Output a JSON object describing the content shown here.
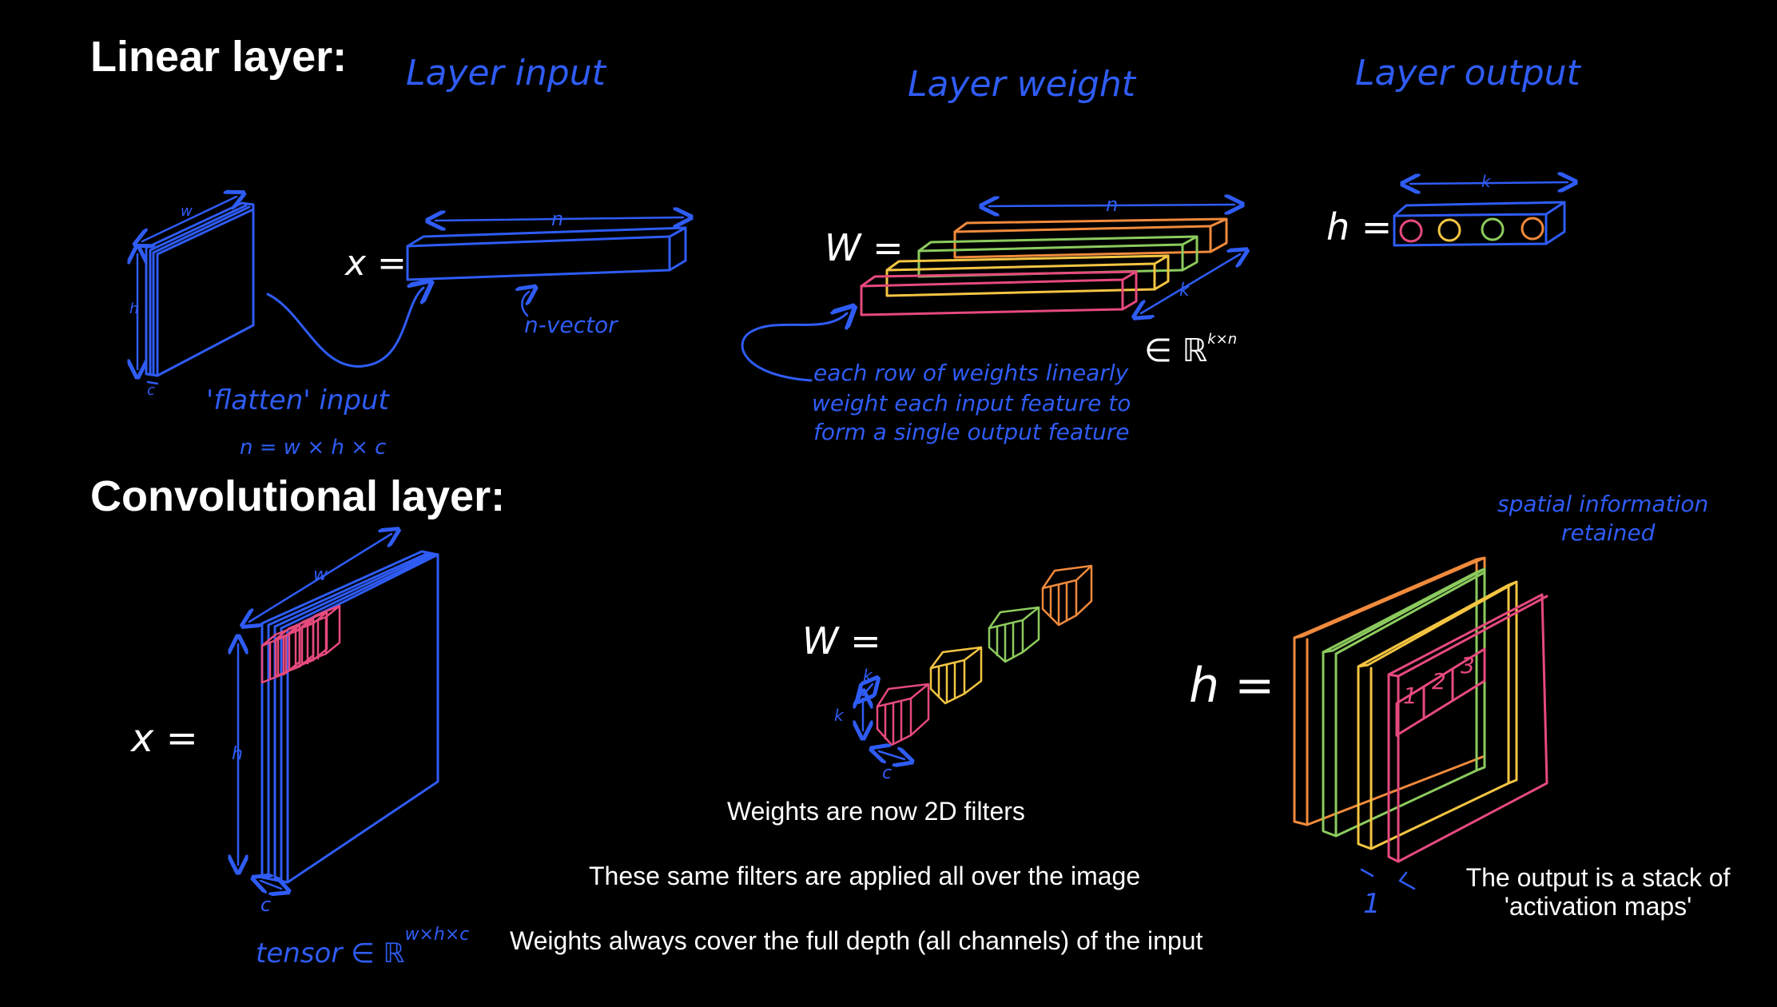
{
  "headings": {
    "linear": "Linear layer:",
    "conv": "Convolutional layer:"
  },
  "linear": {
    "input_title": "Layer input",
    "weight_title": "Layer weight",
    "output_title": "Layer output",
    "input_dims": {
      "w": "w",
      "h": "h",
      "c": "c"
    },
    "x_label": "x =",
    "n_dim": "n",
    "n_vector": "n-vector",
    "flatten_label": "'flatten' input",
    "flatten_formula": "n = w × h × c",
    "W_label": "W =",
    "weight_n": "n",
    "weight_k": "k",
    "weight_space": "∈ ℝ",
    "weight_space_sup": "k×n",
    "weight_note": [
      "each row of weights linearly",
      "weight each input feature to",
      "form a single output feature"
    ],
    "h_label": "h =",
    "output_k": "k"
  },
  "conv": {
    "x_label": "x =",
    "dims": {
      "w": "w",
      "h": "h",
      "c": "c"
    },
    "tensor_label": "tensor ∈ ℝ",
    "tensor_sup": "w×h×c",
    "W_label": "W =",
    "filter_dims": {
      "k1": "k",
      "k2": "k",
      "c": "c"
    },
    "h_label": "h =",
    "map_numbers": [
      "1",
      "2",
      "3"
    ],
    "spatial_note": [
      "spatial information",
      "retained"
    ],
    "depth_one": "1",
    "captions": [
      "Weights are now 2D filters",
      "These same filters are applied all over the image",
      "Weights always cover the full depth (all channels) of the input"
    ],
    "output_caption": [
      "The output is a stack of",
      "'activation maps'"
    ]
  },
  "colors": {
    "background": "#000000",
    "ink_blue": "#2f5cf5",
    "pink": "#e64a7d",
    "yellow": "#f4c542",
    "green": "#8ccb5e",
    "orange": "#f08a3c",
    "white": "#ffffff"
  }
}
